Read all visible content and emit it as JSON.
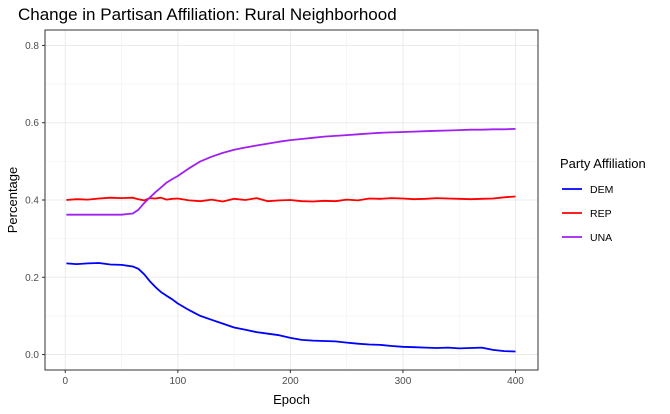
{
  "chart_data": {
    "type": "line",
    "title": "Change in Partisan Affiliation: Rural Neighborhood",
    "xlabel": "Epoch",
    "ylabel": "Percentage",
    "xlim": [
      -18,
      420
    ],
    "ylim": [
      -0.04,
      0.84
    ],
    "x_ticks": [
      0,
      100,
      200,
      300,
      400
    ],
    "x_tick_labels": [
      "0",
      "100",
      "200",
      "300",
      "400"
    ],
    "y_ticks": [
      0.0,
      0.2,
      0.4,
      0.6,
      0.8
    ],
    "y_tick_labels": [
      "0.0",
      "0.2",
      "0.4",
      "0.6",
      "0.8"
    ],
    "grid": true,
    "legend": {
      "title": "Party Affiliation",
      "position": "right"
    },
    "series": [
      {
        "name": "DEM",
        "color": "#0000ff",
        "x": [
          1,
          10,
          20,
          30,
          40,
          50,
          60,
          65,
          70,
          75,
          80,
          85,
          90,
          95,
          100,
          110,
          120,
          130,
          140,
          150,
          160,
          170,
          180,
          190,
          200,
          210,
          220,
          230,
          240,
          250,
          260,
          270,
          280,
          290,
          300,
          310,
          320,
          330,
          340,
          350,
          360,
          370,
          380,
          390,
          400
        ],
        "y": [
          0.236,
          0.234,
          0.236,
          0.237,
          0.233,
          0.232,
          0.228,
          0.222,
          0.208,
          0.19,
          0.175,
          0.162,
          0.152,
          0.143,
          0.132,
          0.115,
          0.1,
          0.09,
          0.08,
          0.07,
          0.064,
          0.058,
          0.054,
          0.05,
          0.043,
          0.038,
          0.036,
          0.035,
          0.034,
          0.031,
          0.028,
          0.026,
          0.025,
          0.022,
          0.02,
          0.019,
          0.018,
          0.017,
          0.018,
          0.016,
          0.017,
          0.018,
          0.012,
          0.009,
          0.008
        ]
      },
      {
        "name": "REP",
        "color": "#ff0000",
        "x": [
          1,
          10,
          20,
          30,
          40,
          50,
          60,
          65,
          70,
          75,
          80,
          85,
          90,
          95,
          100,
          110,
          120,
          130,
          140,
          150,
          160,
          170,
          180,
          190,
          200,
          210,
          220,
          230,
          240,
          250,
          260,
          270,
          280,
          290,
          300,
          310,
          320,
          330,
          340,
          350,
          360,
          370,
          380,
          390,
          400
        ],
        "y": [
          0.4,
          0.402,
          0.401,
          0.404,
          0.406,
          0.405,
          0.406,
          0.402,
          0.399,
          0.405,
          0.404,
          0.406,
          0.401,
          0.403,
          0.404,
          0.399,
          0.397,
          0.401,
          0.396,
          0.403,
          0.4,
          0.405,
          0.397,
          0.399,
          0.4,
          0.397,
          0.396,
          0.398,
          0.397,
          0.401,
          0.399,
          0.404,
          0.403,
          0.405,
          0.404,
          0.402,
          0.403,
          0.405,
          0.404,
          0.403,
          0.402,
          0.403,
          0.404,
          0.407,
          0.409
        ]
      },
      {
        "name": "UNA",
        "color": "#a020f0",
        "x": [
          1,
          10,
          20,
          30,
          40,
          50,
          60,
          65,
          70,
          75,
          80,
          85,
          90,
          95,
          100,
          110,
          120,
          130,
          140,
          150,
          160,
          170,
          180,
          190,
          200,
          210,
          220,
          230,
          240,
          250,
          260,
          270,
          280,
          290,
          300,
          310,
          320,
          330,
          340,
          350,
          360,
          370,
          380,
          390,
          400
        ],
        "y": [
          0.362,
          0.362,
          0.362,
          0.362,
          0.362,
          0.362,
          0.365,
          0.375,
          0.392,
          0.406,
          0.42,
          0.432,
          0.445,
          0.454,
          0.462,
          0.482,
          0.5,
          0.512,
          0.522,
          0.53,
          0.536,
          0.541,
          0.546,
          0.551,
          0.555,
          0.558,
          0.561,
          0.564,
          0.566,
          0.568,
          0.57,
          0.572,
          0.574,
          0.575,
          0.576,
          0.577,
          0.578,
          0.579,
          0.58,
          0.581,
          0.582,
          0.582,
          0.583,
          0.583,
          0.584
        ]
      }
    ]
  }
}
